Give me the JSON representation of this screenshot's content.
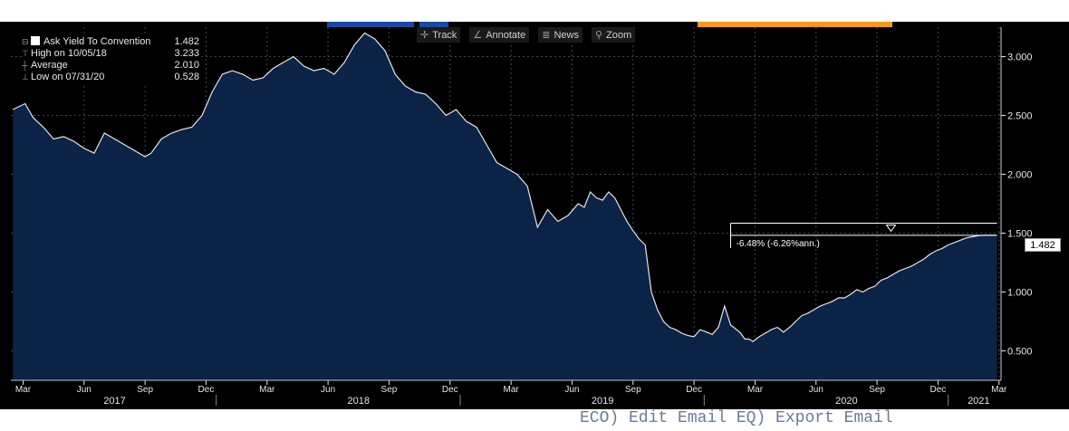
{
  "toolbar": {
    "track": "Track",
    "annotate": "Annotate",
    "news": "News",
    "zoom": "Zoom",
    "icons": [
      "crosshair-icon",
      "pencil-icon",
      "news-icon",
      "magnifier-icon"
    ]
  },
  "legend": {
    "series_label": "Ask Yield To Convention",
    "series_value": "1.482",
    "high_label": "High on 10/05/18",
    "high_value": "3.233",
    "avg_label": "Average",
    "avg_value": "2.010",
    "low_label": "Low on 07/31/20",
    "low_value": "0.528"
  },
  "annotation": {
    "text": "-6.48% (-6.26%ann.)"
  },
  "current_value": "1.482",
  "bottom_text": "ECO) Edit Email  EQ) Export Email",
  "colors": {
    "background": "#000000",
    "area_fill": "#0b2346",
    "line": "#e6e6e6",
    "grid": "#3a4656",
    "axis_text": "#e6e6e6"
  },
  "chart_data": {
    "type": "area",
    "title": "Ask Yield To Convention",
    "x_start": "2017-02",
    "x_end": "2021-03",
    "ylim": [
      0.25,
      3.25
    ],
    "yticks": [
      0.5,
      1.0,
      1.5,
      2.0,
      2.5,
      3.0
    ],
    "ytick_labels": [
      "0.500",
      "1.000",
      "1.500",
      "2.000",
      "2.500",
      "3.000"
    ],
    "month_ticks": [
      {
        "t": 0,
        "label": "Mar"
      },
      {
        "t": 3,
        "label": "Jun"
      },
      {
        "t": 6,
        "label": "Sep"
      },
      {
        "t": 9,
        "label": "Dec"
      },
      {
        "t": 12,
        "label": "Mar"
      },
      {
        "t": 15,
        "label": "Jun"
      },
      {
        "t": 18,
        "label": "Sep"
      },
      {
        "t": 21,
        "label": "Dec"
      },
      {
        "t": 24,
        "label": "Mar"
      },
      {
        "t": 27,
        "label": "Jun"
      },
      {
        "t": 30,
        "label": "Sep"
      },
      {
        "t": 33,
        "label": "Dec"
      },
      {
        "t": 36,
        "label": "Mar"
      },
      {
        "t": 39,
        "label": "Jun"
      },
      {
        "t": 42,
        "label": "Sep"
      },
      {
        "t": 45,
        "label": "Dec"
      },
      {
        "t": 48,
        "label": "Mar"
      }
    ],
    "years": [
      {
        "label": "2017",
        "t": 4.5,
        "sep_t": 9.5
      },
      {
        "label": "2018",
        "t": 16.5,
        "sep_t": 21.5
      },
      {
        "label": "2019",
        "t": 28.5,
        "sep_t": 33.5
      },
      {
        "label": "2020",
        "t": 40.5,
        "sep_t": 45.5
      },
      {
        "label": "2021",
        "t": 47.0
      }
    ],
    "series": [
      {
        "name": "Ask Yield To Convention",
        "t": [
          -0.5,
          0.1,
          0.5,
          1.0,
          1.5,
          2.0,
          2.5,
          3.0,
          3.5,
          4.0,
          4.5,
          5.0,
          5.5,
          6.0,
          6.3,
          6.8,
          7.3,
          7.8,
          8.3,
          8.8,
          9.3,
          9.8,
          10.3,
          10.8,
          11.3,
          11.8,
          12.3,
          12.8,
          13.3,
          13.8,
          14.3,
          14.8,
          15.3,
          15.8,
          16.3,
          16.8,
          17.3,
          17.8,
          18.3,
          18.8,
          19.3,
          19.8,
          20.3,
          20.8,
          21.3,
          21.8,
          22.3,
          22.8,
          23.3,
          23.8,
          24.3,
          24.8,
          25.3,
          25.8,
          26.3,
          26.8,
          27.3,
          27.6,
          27.9,
          28.2,
          28.5,
          28.8,
          29.1,
          29.4,
          29.7,
          30.0,
          30.3,
          30.6,
          30.9,
          31.2,
          31.5,
          31.8,
          32.1,
          32.4,
          32.7,
          33.0,
          33.3,
          33.6,
          33.9,
          34.2,
          34.5,
          34.8,
          35.1,
          35.3,
          35.5,
          35.7,
          35.9,
          36.2,
          36.5,
          36.8,
          37.1,
          37.4,
          37.7,
          38.0,
          38.3,
          38.6,
          38.9,
          39.2,
          39.5,
          39.8,
          40.1,
          40.4,
          40.7,
          41.0,
          41.3,
          41.6,
          41.9,
          42.2,
          42.5,
          42.8,
          43.1,
          43.4,
          43.7,
          44.0,
          44.3,
          44.6,
          44.9,
          45.2,
          45.5,
          45.8,
          46.1,
          46.4,
          46.7,
          47.0,
          47.3,
          47.6,
          47.9
        ],
        "values": [
          2.55,
          2.6,
          2.48,
          2.4,
          2.3,
          2.32,
          2.28,
          2.22,
          2.18,
          2.35,
          2.3,
          2.25,
          2.2,
          2.15,
          2.18,
          2.3,
          2.35,
          2.38,
          2.4,
          2.5,
          2.7,
          2.85,
          2.88,
          2.85,
          2.8,
          2.82,
          2.9,
          2.95,
          3.0,
          2.92,
          2.88,
          2.9,
          2.85,
          2.95,
          3.1,
          3.2,
          3.15,
          3.05,
          2.85,
          2.75,
          2.7,
          2.68,
          2.6,
          2.5,
          2.55,
          2.45,
          2.4,
          2.25,
          2.1,
          2.05,
          2.0,
          1.9,
          1.55,
          1.7,
          1.6,
          1.65,
          1.75,
          1.72,
          1.85,
          1.8,
          1.78,
          1.85,
          1.8,
          1.7,
          1.6,
          1.52,
          1.45,
          1.4,
          1.0,
          0.85,
          0.75,
          0.7,
          0.68,
          0.65,
          0.63,
          0.62,
          0.68,
          0.66,
          0.64,
          0.7,
          0.88,
          0.72,
          0.68,
          0.65,
          0.6,
          0.6,
          0.58,
          0.62,
          0.65,
          0.68,
          0.7,
          0.66,
          0.7,
          0.75,
          0.8,
          0.82,
          0.85,
          0.88,
          0.9,
          0.92,
          0.95,
          0.95,
          0.98,
          1.02,
          1.0,
          1.03,
          1.05,
          1.1,
          1.12,
          1.15,
          1.18,
          1.2,
          1.22,
          1.25,
          1.28,
          1.32,
          1.35,
          1.37,
          1.4,
          1.42,
          1.44,
          1.46,
          1.47,
          1.48,
          1.482,
          1.482,
          1.482
        ]
      }
    ],
    "annotation": {
      "t_start": 34.8,
      "t_end": 47.9,
      "value_start": 1.585,
      "value_end": 1.482
    }
  }
}
